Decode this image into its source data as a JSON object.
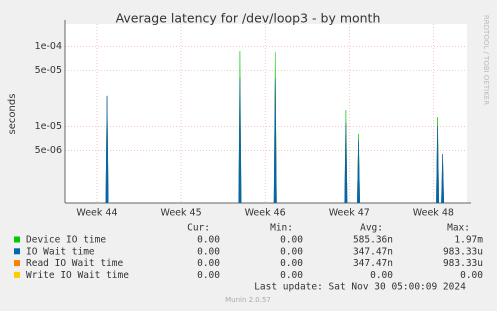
{
  "chart_data": {
    "type": "spike",
    "title": "Average latency for /dev/loop3 - by month",
    "y_label": "seconds",
    "side_label": "RRDTOOL / TOBI OETIKER",
    "log_y": true,
    "grid": true,
    "xlim": [
      43.62,
      48.4
    ],
    "xticks": [
      {
        "value": 44,
        "label": "Week 44"
      },
      {
        "value": 45,
        "label": "Week 45"
      },
      {
        "value": 46,
        "label": "Week 46"
      },
      {
        "value": 47,
        "label": "Week 47"
      },
      {
        "value": 48,
        "label": "Week 48"
      }
    ],
    "ylim": [
      1.1e-06,
      0.00019
    ],
    "yticks": [
      {
        "value": 5e-06,
        "label": "5e-06"
      },
      {
        "value": 1e-05,
        "label": "1e-05"
      },
      {
        "value": 5e-05,
        "label": "5e-05"
      },
      {
        "value": 0.0001,
        "label": "1e-04"
      }
    ],
    "stat_headers": [
      "Cur:",
      "Min:",
      "Avg:",
      "Max:"
    ],
    "series": [
      {
        "name": "Device IO time",
        "color": "#00cc00",
        "x": [
          44.12,
          45.7,
          46.12,
          46.96,
          47.11,
          48.05
        ],
        "values": [
          2.2e-05,
          8.7e-05,
          8.5e-05,
          1.6e-05,
          8e-06,
          1.3e-05
        ],
        "stats": [
          "0.00",
          "0.00",
          "585.36n",
          "1.97m"
        ]
      },
      {
        "name": "IO Wait time",
        "color": "#0066b3",
        "x": [
          44.12,
          45.7,
          46.12,
          46.96,
          47.11,
          48.05,
          48.11
        ],
        "values": [
          2.4e-05,
          4e-05,
          4e-05,
          1.1e-05,
          6.5e-06,
          1e-05,
          4.5e-06
        ],
        "stats": [
          "0.00",
          "0.00",
          "347.47n",
          "983.33u"
        ]
      },
      {
        "name": "Read IO Wait time",
        "color": "#ff8000",
        "x": [
          44.12,
          45.7,
          46.12,
          46.96,
          47.11,
          48.05,
          48.11
        ],
        "values": [
          2.4e-05,
          4e-05,
          4e-05,
          1.1e-05,
          6.5e-06,
          1e-05,
          4.5e-06
        ],
        "stats": [
          "0.00",
          "0.00",
          "347.47n",
          "983.33u"
        ]
      },
      {
        "name": "Write IO Wait time",
        "color": "#ffcc00",
        "x": [],
        "values": [],
        "stats": [
          "0.00",
          "0.00",
          "0.00",
          "0.00"
        ]
      }
    ],
    "last_update": "Last update: Sat Nov 30 05:00:09 2024",
    "footer": "Munin 2.0.57"
  }
}
